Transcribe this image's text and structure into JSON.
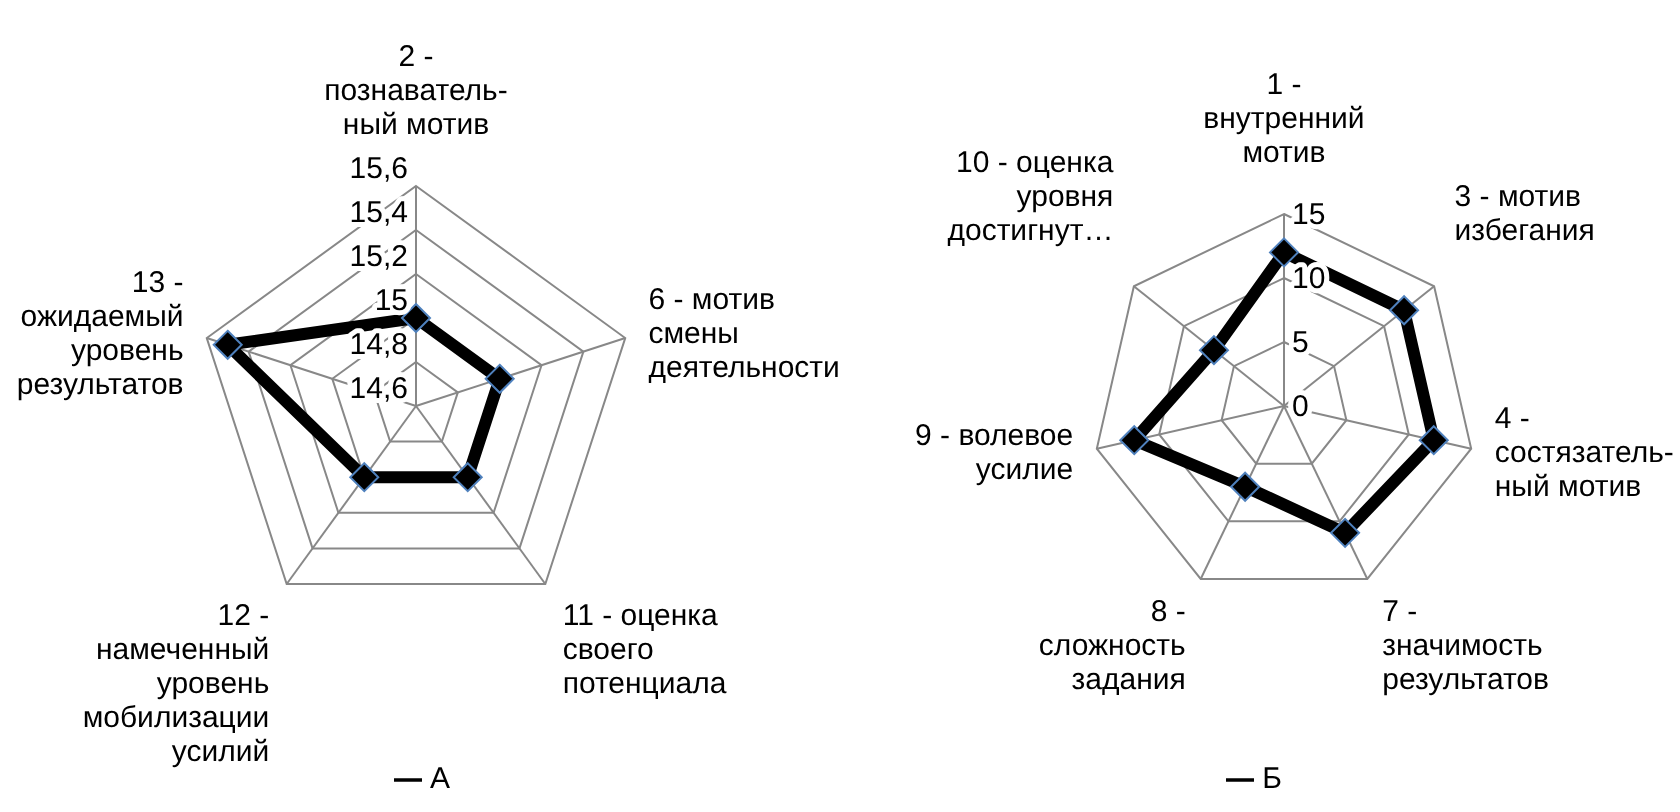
{
  "chart_data": [
    {
      "type": "radar",
      "categories": [
        "2 - познаватель-ный мотив",
        "6 - мотив смены деятельности",
        "11 - оценка своего потенциала",
        "12 - намеченный уровень мобилизации усилий",
        "13 - ожидаемый уровень результатов"
      ],
      "series": [
        {
          "name": "А",
          "color": "#000000",
          "values": [
            15.0,
            15.0,
            15.0,
            15.0,
            15.5
          ]
        }
      ],
      "ylim": [
        14.6,
        15.6
      ],
      "yticks": [
        {
          "value": 14.6,
          "label": "14,6"
        },
        {
          "value": 14.8,
          "label": "14,8"
        },
        {
          "value": 15,
          "label": "15"
        },
        {
          "value": 15.2,
          "label": "15,2"
        },
        {
          "value": 15.4,
          "label": "15,4"
        },
        {
          "value": 15.6,
          "label": "15,6"
        }
      ],
      "legend": "bottom",
      "marker": "diamond",
      "grid": true
    },
    {
      "type": "radar",
      "categories": [
        "1 - внутренний мотив",
        "3 - мотив избегания",
        "4 - состязатель-ный мотив",
        "7 - значимость результатов",
        "8 - сложность задания",
        "9 - волевое усилие",
        "10 - оценка уровня достигнут…"
      ],
      "series": [
        {
          "name": "Б",
          "color": "#000000",
          "values": [
            12,
            12,
            12,
            11,
            7,
            12,
            7
          ]
        }
      ],
      "ylim": [
        0,
        15
      ],
      "yticks": [
        0,
        5,
        10,
        15
      ],
      "legend": "bottom",
      "marker": "diamond",
      "grid": true
    }
  ]
}
